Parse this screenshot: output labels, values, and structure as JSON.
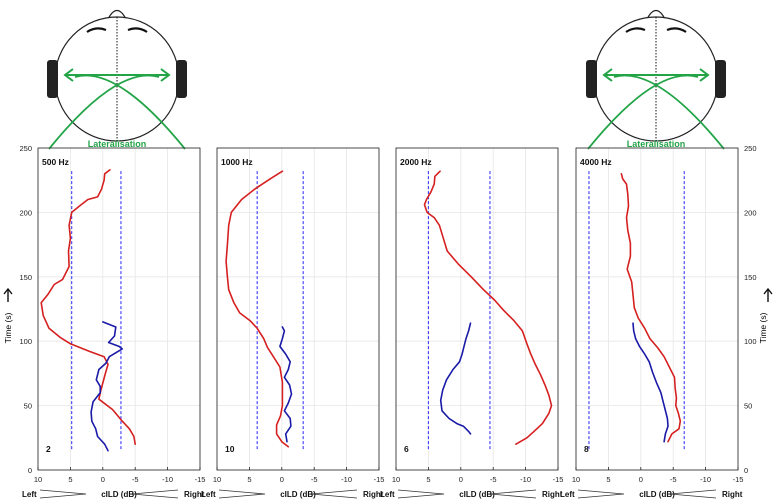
{
  "chart_data": {
    "type": "line",
    "shared": {
      "ylabel": "Time (s)",
      "xlabel": "cILD (dB)",
      "xlabel_left": "Left",
      "xlabel_right": "Right",
      "ylim": [
        0,
        250
      ],
      "yticks": [
        0,
        50,
        100,
        150,
        200,
        250
      ],
      "xlim": [
        10,
        -15
      ],
      "xticks": [
        10,
        5,
        0,
        -5,
        -10,
        -15
      ],
      "grid": true,
      "annotation": "Lateralisation",
      "colors": {
        "red_trace": "#d62020",
        "blue_trace": "#1a1aa8",
        "reference": "#3a3aff",
        "lateralisation": "#22a447"
      }
    },
    "panels": [
      {
        "title": "500 Hz",
        "corner_label": "2",
        "reference_lines": [
          4.8,
          -2.8
        ],
        "series": [
          {
            "color": "red",
            "points": [
              [
                -1.1,
                233
              ],
              [
                -0.3,
                230
              ],
              [
                -0.2,
                225
              ],
              [
                0.2,
                218
              ],
              [
                0.8,
                212
              ],
              [
                2.3,
                210
              ],
              [
                3.6,
                205
              ],
              [
                4.8,
                200
              ],
              [
                5.2,
                190
              ],
              [
                5.0,
                180
              ],
              [
                5.3,
                170
              ],
              [
                5.2,
                158
              ],
              [
                6.2,
                148
              ],
              [
                7.5,
                144
              ],
              [
                8.5,
                136
              ],
              [
                9.5,
                130
              ],
              [
                9.2,
                120
              ],
              [
                8.3,
                110
              ],
              [
                6.6,
                103
              ],
              [
                5.0,
                98
              ],
              [
                2.0,
                92
              ],
              [
                -0.2,
                88
              ],
              [
                -0.8,
                82
              ],
              [
                -0.4,
                75
              ],
              [
                0.3,
                62
              ],
              [
                0.6,
                55
              ],
              [
                -1.5,
                47
              ],
              [
                -3.0,
                38
              ],
              [
                -4.1,
                32
              ],
              [
                -4.8,
                26
              ],
              [
                -5.0,
                20
              ]
            ]
          },
          {
            "color": "blue",
            "points": [
              [
                0.0,
                115
              ],
              [
                -2.0,
                111
              ],
              [
                -1.8,
                104
              ],
              [
                -0.9,
                99
              ],
              [
                -2.5,
                96
              ],
              [
                -3.0,
                94
              ],
              [
                -1.0,
                88
              ],
              [
                -0.5,
                83
              ],
              [
                0.6,
                78
              ],
              [
                1.0,
                70
              ],
              [
                0.4,
                65
              ],
              [
                0.4,
                60
              ],
              [
                1.5,
                53
              ],
              [
                1.8,
                45
              ],
              [
                1.7,
                38
              ],
              [
                1.1,
                32
              ],
              [
                0.8,
                26
              ],
              [
                -0.3,
                20
              ],
              [
                -0.8,
                15
              ]
            ]
          }
        ]
      },
      {
        "title": "1000 Hz",
        "corner_label": "10",
        "reference_lines": [
          3.8,
          -3.3
        ],
        "series": [
          {
            "color": "red",
            "points": [
              [
                -0.1,
                232
              ],
              [
                1.8,
                226
              ],
              [
                4.2,
                218
              ],
              [
                6.2,
                210
              ],
              [
                7.8,
                200
              ],
              [
                8.2,
                190
              ],
              [
                8.4,
                175
              ],
              [
                8.6,
                162
              ],
              [
                8.4,
                150
              ],
              [
                8.2,
                140
              ],
              [
                7.4,
                130
              ],
              [
                6.5,
                122
              ],
              [
                4.9,
                116
              ],
              [
                3.8,
                110
              ],
              [
                2.8,
                102
              ],
              [
                2.2,
                95
              ],
              [
                1.3,
                88
              ],
              [
                0.3,
                80
              ],
              [
                -0.1,
                68
              ],
              [
                -0.1,
                58
              ],
              [
                -0.1,
                50
              ],
              [
                0.2,
                42
              ],
              [
                0.8,
                35
              ],
              [
                0.8,
                28
              ],
              [
                0.0,
                22
              ],
              [
                -1.0,
                18
              ]
            ]
          },
          {
            "color": "blue",
            "points": [
              [
                -0.1,
                111
              ],
              [
                -0.4,
                108
              ],
              [
                -0.1,
                102
              ],
              [
                0.3,
                96
              ],
              [
                -0.6,
                90
              ],
              [
                -1.3,
                84
              ],
              [
                -1.0,
                78
              ],
              [
                -0.4,
                72
              ],
              [
                -1.2,
                66
              ],
              [
                -1.5,
                59
              ],
              [
                -1.0,
                52
              ],
              [
                -0.4,
                46
              ],
              [
                -1.3,
                40
              ],
              [
                -1.4,
                34
              ],
              [
                -0.6,
                28
              ],
              [
                -0.8,
                22
              ]
            ]
          }
        ]
      },
      {
        "title": "2000 Hz",
        "corner_label": "6",
        "reference_lines": [
          5.0,
          -4.5
        ],
        "series": [
          {
            "color": "red",
            "points": [
              [
                3.2,
                232
              ],
              [
                4.0,
                228
              ],
              [
                4.1,
                222
              ],
              [
                4.6,
                216
              ],
              [
                5.3,
                210
              ],
              [
                5.6,
                206
              ],
              [
                5.2,
                200
              ],
              [
                4.1,
                196
              ],
              [
                3.3,
                190
              ],
              [
                2.7,
                180
              ],
              [
                2.1,
                170
              ],
              [
                0.4,
                160
              ],
              [
                -1.6,
                150
              ],
              [
                -3.5,
                140
              ],
              [
                -5.2,
                132
              ],
              [
                -6.6,
                124
              ],
              [
                -8.2,
                116
              ],
              [
                -9.5,
                108
              ],
              [
                -10.2,
                98
              ],
              [
                -10.8,
                90
              ],
              [
                -11.5,
                82
              ],
              [
                -12.3,
                74
              ],
              [
                -13.0,
                66
              ],
              [
                -13.6,
                58
              ],
              [
                -14.0,
                50
              ],
              [
                -13.6,
                44
              ],
              [
                -12.6,
                36
              ],
              [
                -11.3,
                30
              ],
              [
                -10.2,
                25
              ],
              [
                -8.5,
                20
              ]
            ]
          },
          {
            "color": "blue",
            "points": [
              [
                -1.5,
                114
              ],
              [
                -1.2,
                108
              ],
              [
                -0.8,
                102
              ],
              [
                -0.5,
                96
              ],
              [
                -0.2,
                90
              ],
              [
                0.2,
                84
              ],
              [
                1.2,
                78
              ],
              [
                2.2,
                70
              ],
              [
                2.8,
                62
              ],
              [
                3.1,
                54
              ],
              [
                2.9,
                46
              ],
              [
                1.8,
                40
              ],
              [
                0.6,
                36
              ],
              [
                -0.4,
                34
              ],
              [
                -1.2,
                30
              ],
              [
                -1.5,
                28
              ]
            ]
          }
        ]
      },
      {
        "title": "4000 Hz",
        "corner_label": "8",
        "reference_lines": [
          8.0,
          -6.7
        ],
        "series": [
          {
            "color": "red",
            "points": [
              [
                3.0,
                230
              ],
              [
                2.8,
                226
              ],
              [
                2.2,
                222
              ],
              [
                2.0,
                214
              ],
              [
                1.9,
                205
              ],
              [
                2.2,
                196
              ],
              [
                2.0,
                186
              ],
              [
                1.6,
                176
              ],
              [
                1.6,
                166
              ],
              [
                2.1,
                156
              ],
              [
                1.4,
                146
              ],
              [
                1.2,
                136
              ],
              [
                1.0,
                126
              ],
              [
                0.4,
                118
              ],
              [
                -0.6,
                110
              ],
              [
                -1.4,
                102
              ],
              [
                -2.6,
                95
              ],
              [
                -3.6,
                88
              ],
              [
                -4.4,
                80
              ],
              [
                -5.2,
                72
              ],
              [
                -5.3,
                64
              ],
              [
                -5.5,
                56
              ],
              [
                -5.4,
                50
              ],
              [
                -5.8,
                44
              ],
              [
                -6.1,
                38
              ],
              [
                -5.9,
                32
              ],
              [
                -4.8,
                28
              ],
              [
                -4.2,
                22
              ]
            ]
          },
          {
            "color": "blue",
            "points": [
              [
                1.2,
                114
              ],
              [
                1.1,
                108
              ],
              [
                0.8,
                102
              ],
              [
                0.2,
                96
              ],
              [
                -0.6,
                90
              ],
              [
                -1.3,
                84
              ],
              [
                -1.8,
                76
              ],
              [
                -2.4,
                68
              ],
              [
                -3.1,
                60
              ],
              [
                -3.4,
                54
              ],
              [
                -3.7,
                48
              ],
              [
                -4.1,
                40
              ],
              [
                -4.2,
                34
              ],
              [
                -3.8,
                28
              ],
              [
                -3.6,
                22
              ]
            ]
          }
        ]
      }
    ]
  }
}
